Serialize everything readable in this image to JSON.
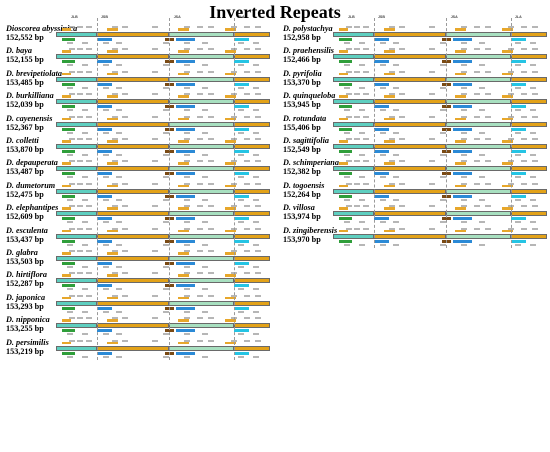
{
  "title": "Inverted Repeats",
  "column_headers": [
    "JLB",
    "JSB",
    "JSA",
    "JLA"
  ],
  "regions": [
    "LSC",
    "IRa",
    "SSC",
    "IRb"
  ],
  "species_left": [
    {
      "name": "Dioscorea abyssinica",
      "bp": "152,552 bp"
    },
    {
      "name": "D. baya",
      "bp": "152,155 bp"
    },
    {
      "name": "D. brevipetiolata",
      "bp": "153,485 bp"
    },
    {
      "name": "D. burkilliana",
      "bp": "152,039 bp"
    },
    {
      "name": "D. cayenensis",
      "bp": "152,367 bp"
    },
    {
      "name": "D. colletti",
      "bp": "153,870 bp"
    },
    {
      "name": "D. depauperata",
      "bp": "153,487 bp"
    },
    {
      "name": "D. dumetorum",
      "bp": "152,475 bp"
    },
    {
      "name": "D. elephantipes",
      "bp": "152,609 bp"
    },
    {
      "name": "D. esculenta",
      "bp": "153,437 bp"
    },
    {
      "name": "D. glabra",
      "bp": "153,503 bp"
    },
    {
      "name": "D. hirtiflora",
      "bp": "152,287 bp"
    },
    {
      "name": "D. japonica",
      "bp": "153,293 bp"
    },
    {
      "name": "D. nipponica",
      "bp": "153,255 bp"
    },
    {
      "name": "D. persimilis",
      "bp": "153,219 bp"
    }
  ],
  "species_right": [
    {
      "name": "D. polystachya",
      "bp": "152,958 bp"
    },
    {
      "name": "D. praehensilis",
      "bp": "152,466 bp"
    },
    {
      "name": "D. pyrifolia",
      "bp": "153,370 bp"
    },
    {
      "name": "D. quinqueloba",
      "bp": "153,945 bp"
    },
    {
      "name": "D. rotundata",
      "bp": "155,406 bp"
    },
    {
      "name": "D. sagittifolia",
      "bp": "152,549 bp"
    },
    {
      "name": "D. schimperiana",
      "bp": "152,382 bp"
    },
    {
      "name": "D. togoensis",
      "bp": "152,264 bp"
    },
    {
      "name": "D. villosa",
      "bp": "153,974 bp"
    },
    {
      "name": "D. zingiberensis",
      "bp": "153,970 bp"
    }
  ],
  "colors": {
    "lsc": "#5ecfc0",
    "ira": "#e3a218",
    "ssc": "#a8e0c0",
    "irb": "#e3a218",
    "gene_blue": "#2b8ad6",
    "gene_green": "#2f9e3a",
    "gene_brown": "#7a4a14",
    "gene_cyan": "#25c4e4"
  }
}
